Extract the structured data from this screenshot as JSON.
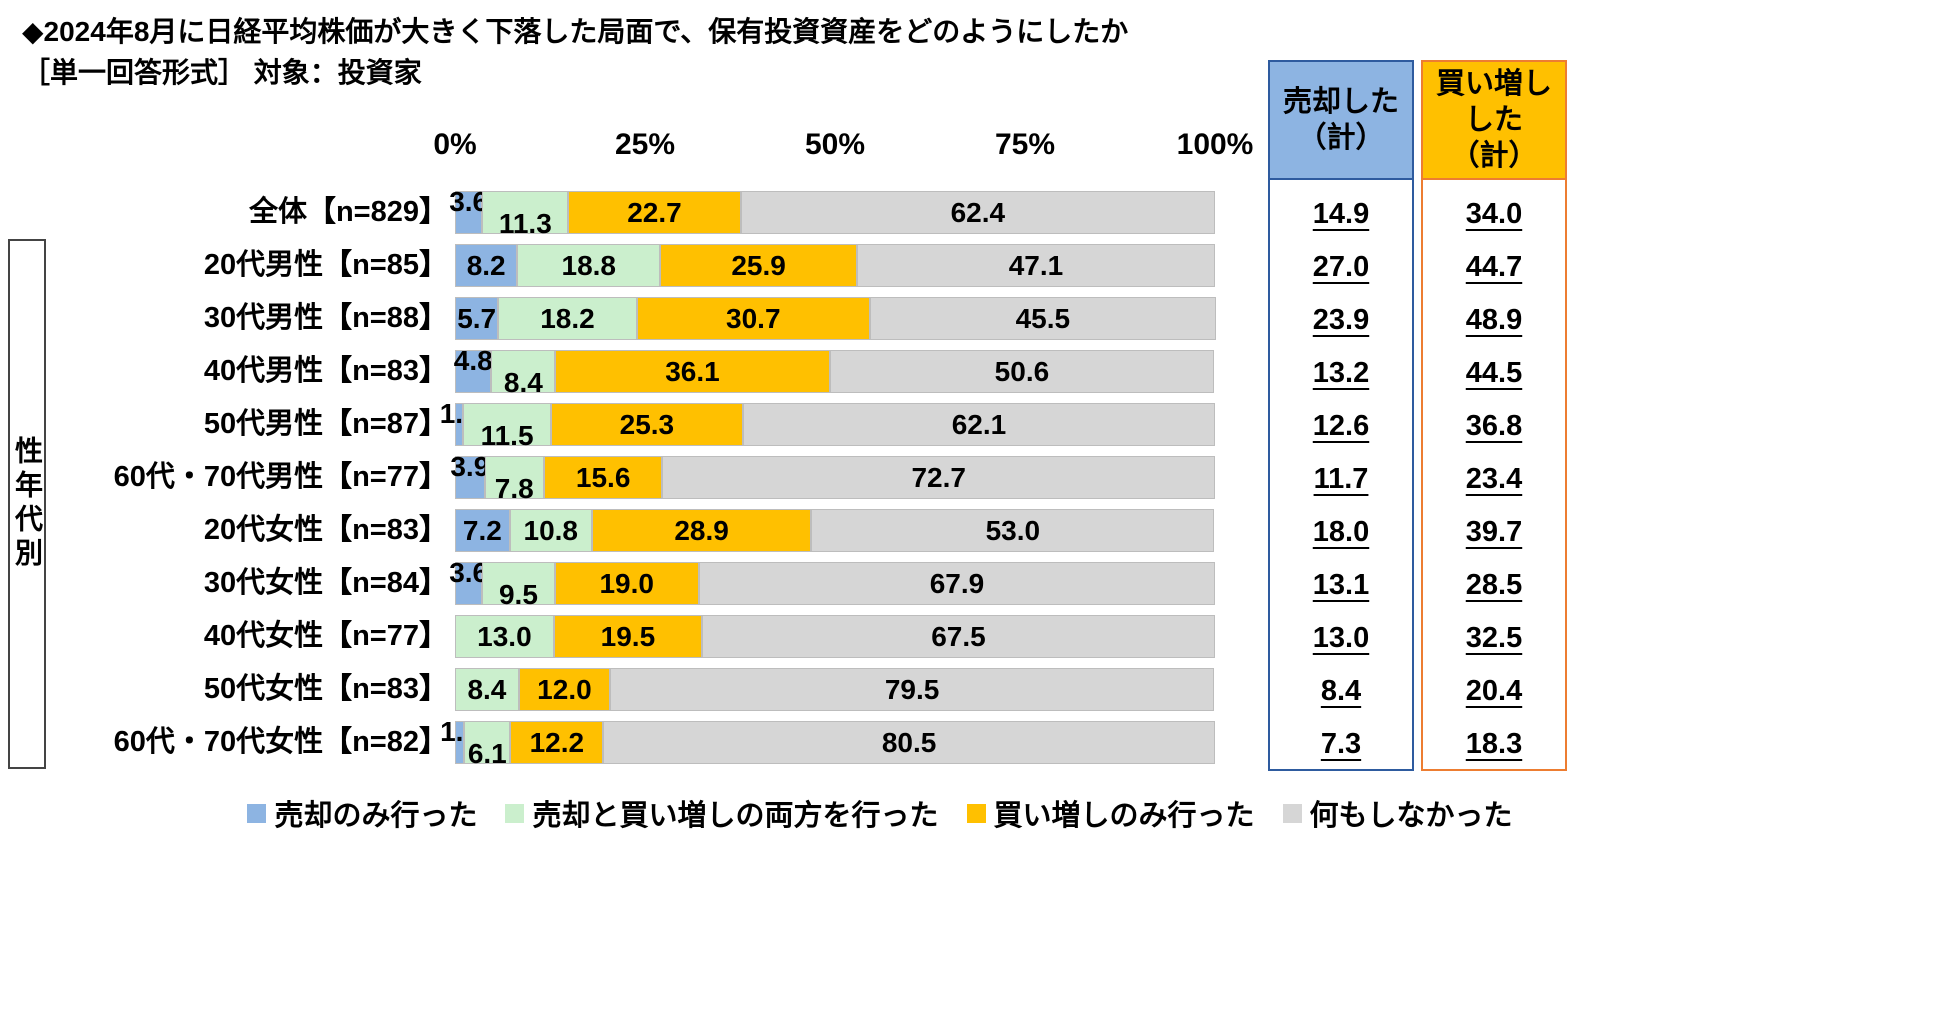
{
  "title": {
    "line1": "◆2024年8月に日経平均株価が大きく下落した局面で、保有投資資産をどのようにしたか",
    "line2": "［単一回答形式］ 対象：投資家"
  },
  "group_label": "性年代別",
  "chart_data": {
    "type": "bar",
    "stacked": true,
    "orientation": "horizontal",
    "title": "2024年8月に日経平均株価が大きく下落した局面で、保有投資資産をどのようにしたか",
    "xlim": [
      0,
      100
    ],
    "tick_labels": [
      "0%",
      "25%",
      "50%",
      "75%",
      "100%"
    ],
    "grid": false,
    "legend_position": "bottom",
    "categories": [
      "全体【n=829】",
      "20代男性【n=85】",
      "30代男性【n=88】",
      "40代男性【n=83】",
      "50代男性【n=87】",
      "60代・70代男性【n=77】",
      "20代女性【n=83】",
      "30代女性【n=84】",
      "40代女性【n=77】",
      "50代女性【n=83】",
      "60代・70代女性【n=82】"
    ],
    "series": [
      {
        "name": "売却のみ行った",
        "color": "#8DB4E2",
        "values": [
          3.6,
          8.2,
          5.7,
          4.8,
          1.1,
          3.9,
          7.2,
          3.6,
          0,
          0,
          1.2
        ]
      },
      {
        "name": "売却と買い増しの両方を行った",
        "color": "#CBEFCD",
        "values": [
          11.3,
          18.8,
          18.2,
          8.4,
          11.5,
          7.8,
          10.8,
          9.5,
          13.0,
          8.4,
          6.1
        ]
      },
      {
        "name": "買い増しのみ行った",
        "color": "#FFC000",
        "values": [
          22.7,
          25.9,
          30.7,
          36.1,
          25.3,
          15.6,
          28.9,
          19.0,
          19.5,
          12.0,
          12.2
        ]
      },
      {
        "name": "何もしなかった",
        "color": "#D6D6D6",
        "values": [
          62.4,
          47.1,
          45.5,
          50.6,
          62.1,
          72.7,
          53.0,
          67.9,
          67.5,
          79.5,
          80.5
        ]
      }
    ]
  },
  "summary_columns": [
    {
      "header": "売却した\n（計）",
      "fill": "#8DB4E2",
      "border": "#2E5B9F",
      "values": [
        14.9,
        27.0,
        23.9,
        13.2,
        12.6,
        11.7,
        18.0,
        13.1,
        13.0,
        8.4,
        7.3
      ]
    },
    {
      "header": "買い増し\nした\n（計）",
      "fill": "#FFC000",
      "border": "#ED7D31",
      "values": [
        34.0,
        44.7,
        48.9,
        44.5,
        36.8,
        23.4,
        39.7,
        28.5,
        32.5,
        20.4,
        18.3
      ]
    }
  ]
}
